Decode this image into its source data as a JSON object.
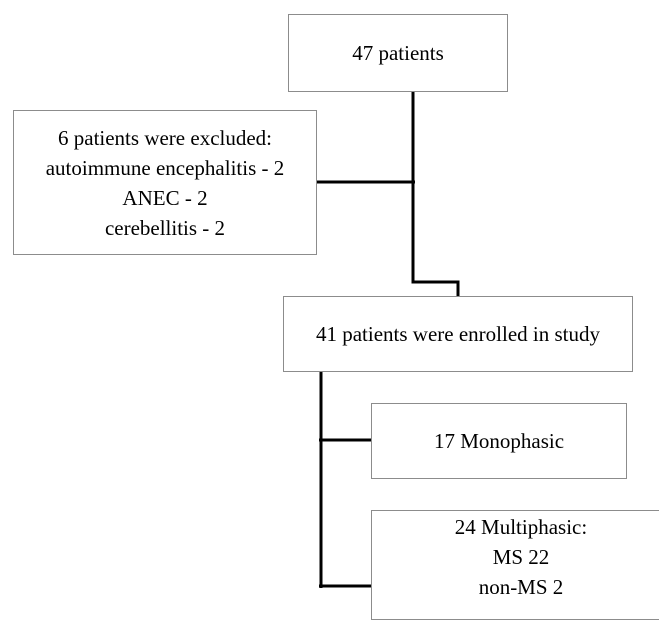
{
  "total": {
    "lines": [
      "47 patients"
    ]
  },
  "excluded": {
    "lines": [
      "6 patients were excluded:",
      "autoimmune encephalitis - 2",
      "ANEC - 2",
      "cerebellitis - 2"
    ]
  },
  "enrolled": {
    "lines": [
      "41 patients were enrolled in study"
    ]
  },
  "monophasic": {
    "lines": [
      "17 Monophasic"
    ]
  },
  "multiphasic": {
    "lines": [
      "24 Multiphasic:",
      "MS 22",
      "non-MS 2"
    ]
  },
  "colors": {
    "box_border": "#8c8c8c",
    "connector": "#000000",
    "background": "#ffffff"
  }
}
